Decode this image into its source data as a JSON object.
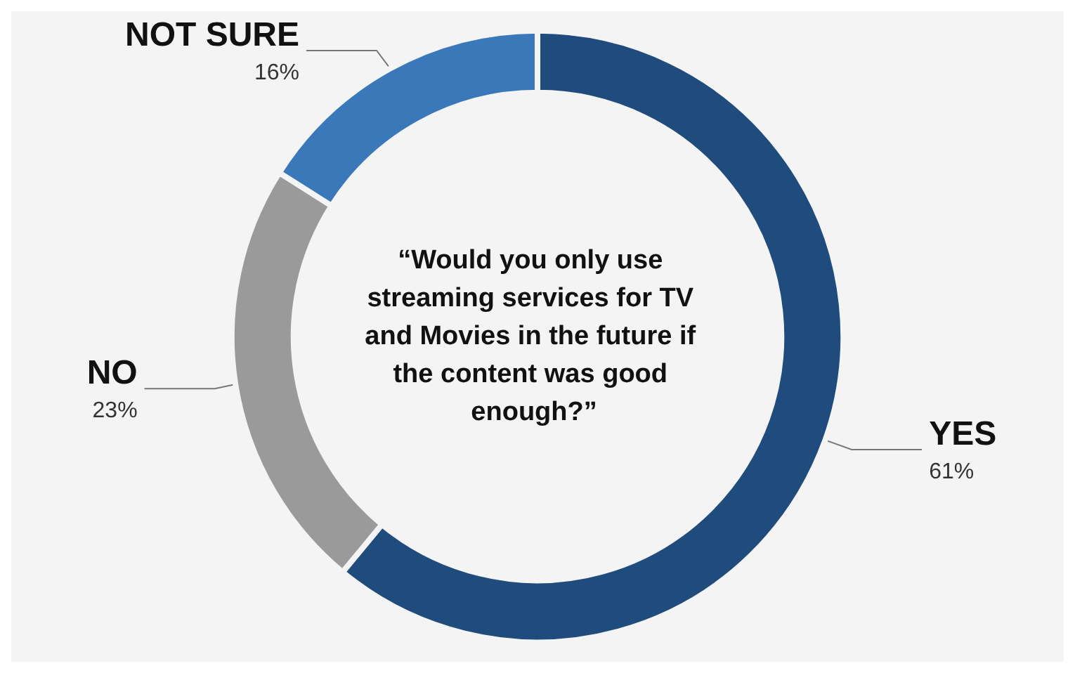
{
  "chart_data": {
    "type": "donut",
    "title": "“Would you only use streaming services for TV and Movies in the future if the content was good enough?”",
    "categories": [
      "YES",
      "NO",
      "NOT SURE"
    ],
    "values": [
      61,
      23,
      16
    ],
    "value_labels": [
      "61%",
      "23%",
      "16%"
    ],
    "colors": [
      "#1f4c7c",
      "#9a9a9a",
      "#3a78b9"
    ],
    "legend": false
  }
}
